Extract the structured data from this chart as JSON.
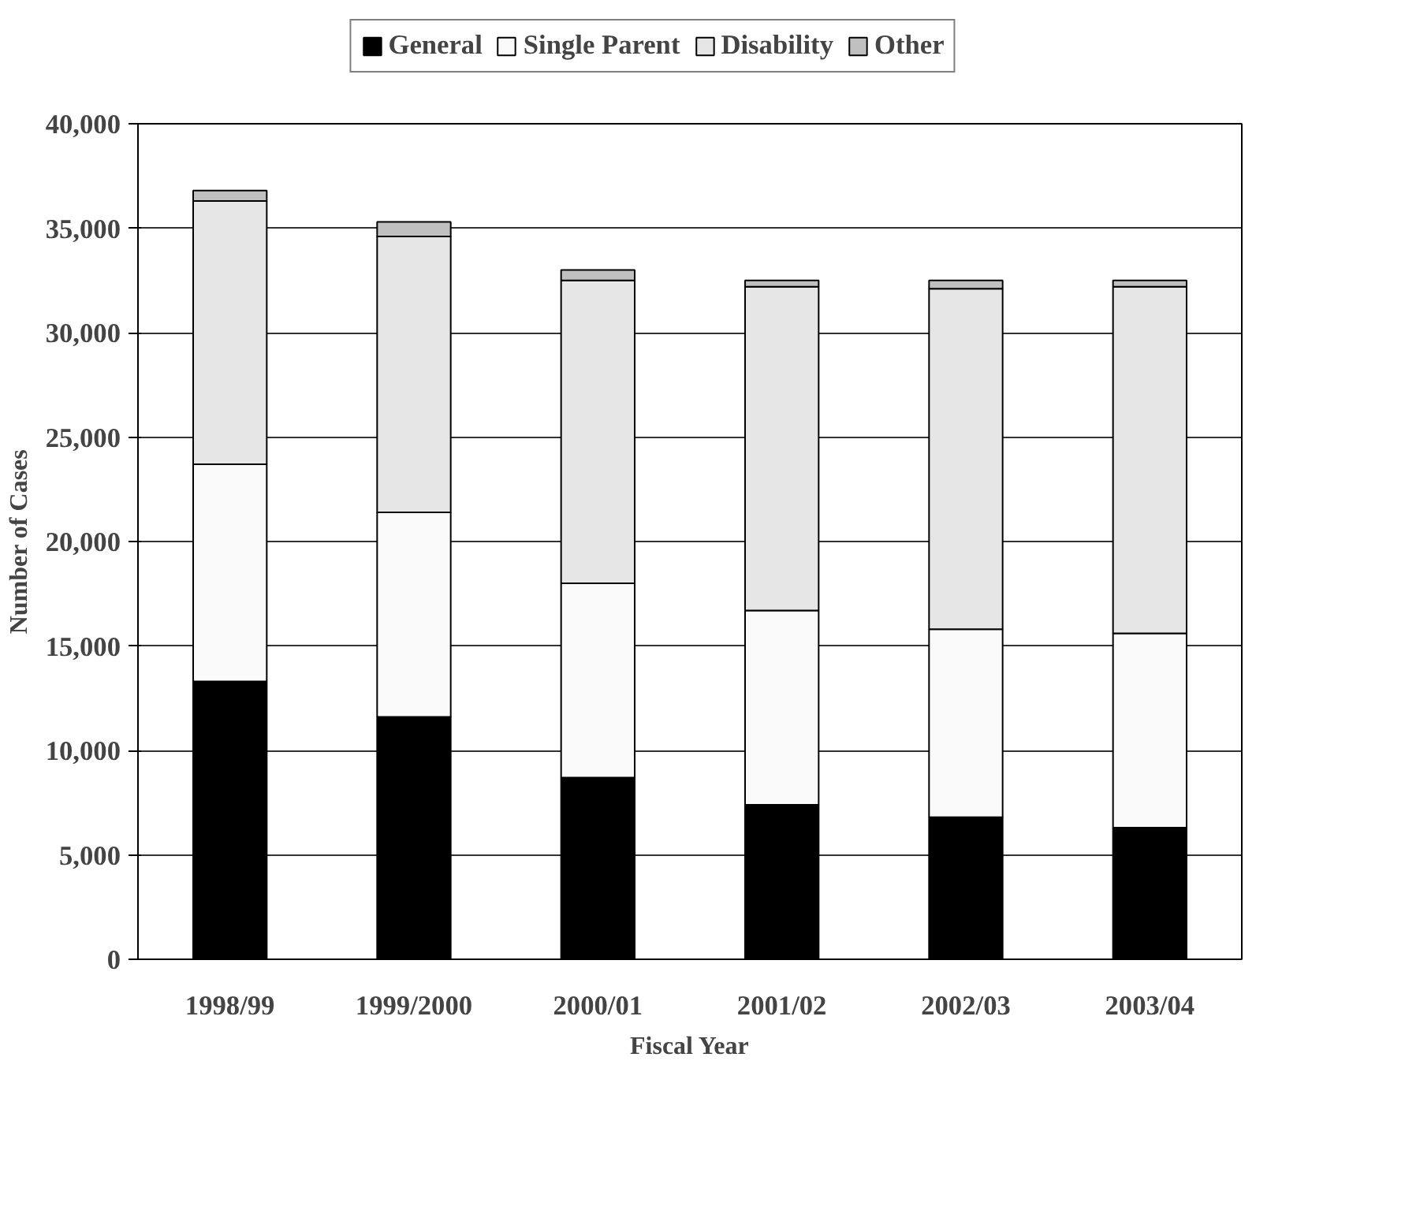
{
  "chart_data": {
    "type": "bar",
    "stacked": true,
    "xlabel": "Fiscal Year",
    "ylabel": "Number of Cases",
    "categories": [
      "1998/99",
      "1999/2000",
      "2000/01",
      "2001/02",
      "2002/03",
      "2003/04"
    ],
    "series": [
      {
        "name": "General",
        "color": "#000000",
        "values": [
          13300,
          11600,
          8700,
          7400,
          6800,
          6300
        ]
      },
      {
        "name": "Single Parent",
        "color": "#fafafa",
        "values": [
          10400,
          9800,
          9300,
          9300,
          9000,
          9300
        ]
      },
      {
        "name": "Disability",
        "color": "#e6e6e6",
        "values": [
          12600,
          13200,
          14500,
          15500,
          16300,
          16600
        ]
      },
      {
        "name": "Other",
        "color": "#c0c0c0",
        "values": [
          500,
          700,
          500,
          300,
          400,
          300
        ]
      }
    ],
    "ylim": [
      0,
      40000
    ],
    "yticks": [
      {
        "value": 0,
        "label": "0"
      },
      {
        "value": 5000,
        "label": "5,000"
      },
      {
        "value": 10000,
        "label": "10,000"
      },
      {
        "value": 15000,
        "label": "15,000"
      },
      {
        "value": 20000,
        "label": "20,000"
      },
      {
        "value": 25000,
        "label": "25,000"
      },
      {
        "value": 30000,
        "label": "30,000"
      },
      {
        "value": 35000,
        "label": "35,000"
      },
      {
        "value": 40000,
        "label": "40,000"
      }
    ],
    "grid": "y",
    "legend": "top"
  }
}
